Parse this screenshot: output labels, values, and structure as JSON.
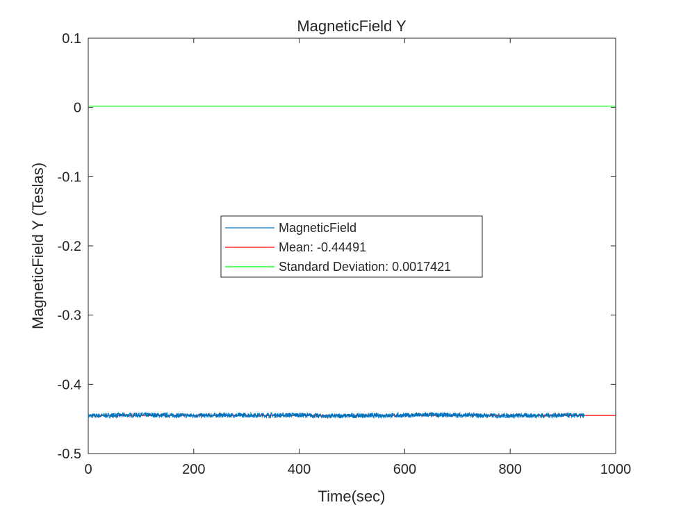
{
  "chart_data": {
    "type": "line",
    "title": "MagneticField Y",
    "xlabel": "Time(sec)",
    "ylabel": "MagneticField Y (Teslas)",
    "xlim": [
      0,
      1000
    ],
    "ylim": [
      -0.5,
      0.1
    ],
    "x_ticks": [
      0,
      200,
      400,
      600,
      800,
      1000
    ],
    "x_tick_labels": [
      "0",
      "200",
      "400",
      "600",
      "800",
      "1000"
    ],
    "y_ticks": [
      0.1,
      0,
      -0.1,
      -0.2,
      -0.3,
      -0.4,
      -0.5
    ],
    "y_tick_labels": [
      "0.1",
      "0",
      "-0.1",
      "-0.2",
      "-0.3",
      "-0.4",
      "-0.5"
    ],
    "grid": false,
    "legend_position": "center",
    "series": [
      {
        "name": "MagneticField",
        "color": "#0072BD",
        "x_range": [
          0,
          940
        ],
        "baseline": -0.4449,
        "noise_amplitude": 0.0035,
        "points": [
          [
            0,
            -0.4455
          ],
          [
            50,
            -0.4448
          ],
          [
            100,
            -0.4441
          ],
          [
            150,
            -0.4447
          ],
          [
            200,
            -0.4451
          ],
          [
            250,
            -0.4446
          ],
          [
            300,
            -0.4445
          ],
          [
            350,
            -0.4447
          ],
          [
            400,
            -0.4442
          ],
          [
            450,
            -0.446
          ],
          [
            500,
            -0.4452
          ],
          [
            550,
            -0.4449
          ],
          [
            600,
            -0.4448
          ],
          [
            650,
            -0.444
          ],
          [
            700,
            -0.4445
          ],
          [
            750,
            -0.4451
          ],
          [
            800,
            -0.4452
          ],
          [
            850,
            -0.445
          ],
          [
            900,
            -0.4446
          ],
          [
            940,
            -0.4452
          ]
        ]
      },
      {
        "name": "Mean: -0.44491",
        "color": "#FF0000",
        "x": [
          0,
          1000
        ],
        "y": [
          -0.44491,
          -0.44491
        ]
      },
      {
        "name": "Standard Deviation: 0.0017421",
        "color": "#00FF00",
        "x": [
          0,
          1000
        ],
        "y": [
          0.0017421,
          0.0017421
        ]
      }
    ]
  }
}
